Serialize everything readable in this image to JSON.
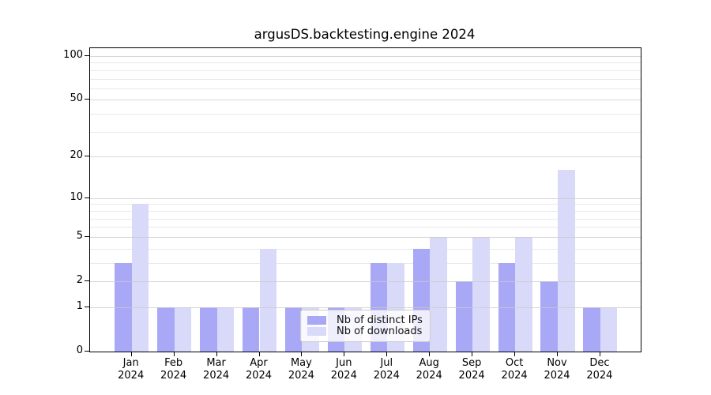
{
  "title": "argusDS.backtesting.engine 2024",
  "legend": {
    "items": [
      {
        "label": "Nb of distinct IPs",
        "color": "#a8a8f6"
      },
      {
        "label": "Nb of downloads",
        "color": "#d9d9f9"
      }
    ]
  },
  "y_axis": {
    "tick_labels": [
      "100",
      "50",
      "20",
      "10",
      "5",
      "2",
      "1",
      "0"
    ],
    "tick_values": [
      100,
      50,
      20,
      10,
      5,
      2,
      1,
      0
    ]
  },
  "x_axis": {
    "months": [
      "Jan",
      "Feb",
      "Mar",
      "Apr",
      "May",
      "Jun",
      "Jul",
      "Aug",
      "Sep",
      "Oct",
      "Nov",
      "Dec"
    ],
    "year": "2024"
  },
  "chart_data": {
    "type": "bar",
    "title": "argusDS.backtesting.engine 2024",
    "categories": [
      "Jan 2024",
      "Feb 2024",
      "Mar 2024",
      "Apr 2024",
      "May 2024",
      "Jun 2024",
      "Jul 2024",
      "Aug 2024",
      "Sep 2024",
      "Oct 2024",
      "Nov 2024",
      "Dec 2024"
    ],
    "series": [
      {
        "name": "Nb of distinct IPs",
        "color": "#a8a8f6",
        "values": [
          3,
          1,
          1,
          1,
          1,
          1,
          3,
          4,
          2,
          3,
          2,
          1
        ]
      },
      {
        "name": "Nb of downloads",
        "color": "#d9d9f9",
        "values": [
          9,
          1,
          1,
          4,
          1,
          1,
          3,
          5,
          5,
          5,
          16,
          1
        ]
      }
    ],
    "xlabel": "",
    "ylabel": "",
    "yscale": "log10(value+1)",
    "ylim": [
      0,
      113
    ],
    "y_major_gridlines": [
      1,
      2,
      5,
      10,
      20,
      50,
      100
    ],
    "y_minor_gridlines": [
      3,
      4,
      6,
      7,
      8,
      9,
      30,
      40,
      60,
      70,
      80,
      90
    ],
    "grid": true,
    "legend_position": "lower center"
  }
}
